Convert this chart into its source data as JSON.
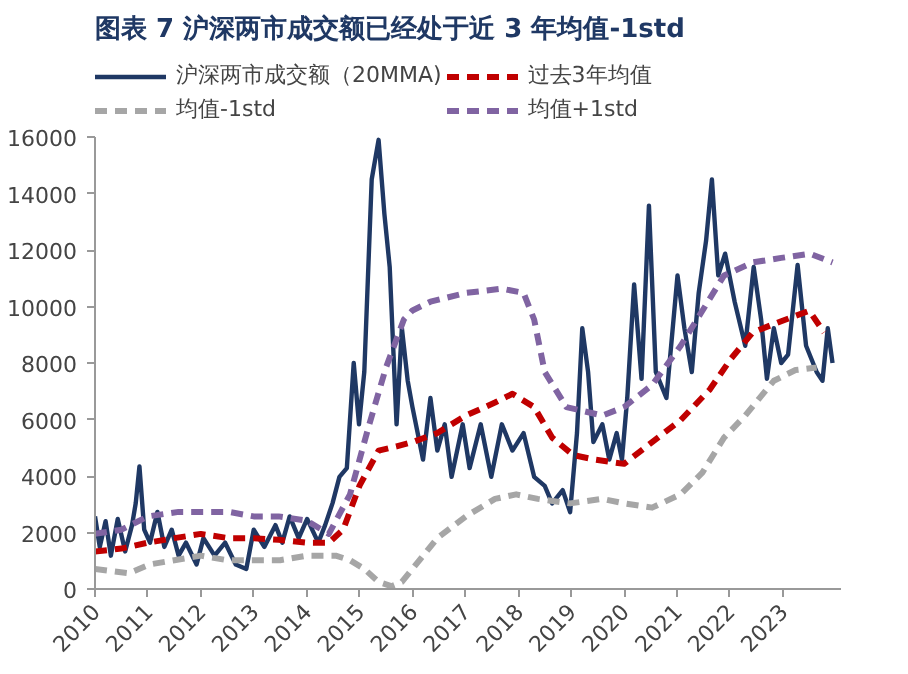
{
  "chart_data": {
    "type": "line",
    "title": "图表 7   沪深两市成交额已经处于近 3 年均值-1std",
    "xlim": [
      2010,
      2024.1
    ],
    "xticks": [
      2010,
      2011,
      2012,
      2013,
      2014,
      2015,
      2016,
      2017,
      2018,
      2019,
      2020,
      2021,
      2022,
      2023
    ],
    "ylim": [
      0,
      16000
    ],
    "yticks": [
      0,
      2000,
      4000,
      6000,
      8000,
      10000,
      12000,
      14000,
      16000
    ],
    "grid": false,
    "legend": "top",
    "series": [
      {
        "name": "沪深两市成交额（20MMA)",
        "color": "#1f3864",
        "line_style": "solid",
        "x": [
          2010.0,
          2010.09,
          2010.2,
          2010.3,
          2010.43,
          2010.57,
          2010.7,
          2010.77,
          2010.84,
          2010.93,
          2011.04,
          2011.18,
          2011.31,
          2011.45,
          2011.58,
          2011.72,
          2011.92,
          2012.05,
          2012.26,
          2012.46,
          2012.66,
          2012.86,
          2013.0,
          2013.2,
          2013.41,
          2013.54,
          2013.68,
          2013.85,
          2014.01,
          2014.22,
          2014.35,
          2014.49,
          2014.62,
          2014.76,
          2014.89,
          2014.99,
          2015.09,
          2015.23,
          2015.36,
          2015.47,
          2015.57,
          2015.7,
          2015.8,
          2015.91,
          2016.0,
          2016.2,
          2016.34,
          2016.47,
          2016.61,
          2016.74,
          2016.95,
          2017.08,
          2017.29,
          2017.49,
          2017.69,
          2017.89,
          2018.1,
          2018.3,
          2018.5,
          2018.64,
          2018.84,
          2018.98,
          2019.11,
          2019.21,
          2019.32,
          2019.42,
          2019.59,
          2019.72,
          2019.86,
          2019.96,
          2020.06,
          2020.19,
          2020.33,
          2020.47,
          2020.6,
          2020.8,
          2021.01,
          2021.14,
          2021.28,
          2021.41,
          2021.55,
          2021.66,
          2021.78,
          2021.91,
          2022.09,
          2022.29,
          2022.45,
          2022.59,
          2022.7,
          2022.83,
          2022.97,
          2023.1,
          2023.28,
          2023.44,
          2023.64,
          2023.75,
          2023.85,
          2023.94
        ],
        "values": [
          2570,
          1490,
          2400,
          1180,
          2480,
          1330,
          2260,
          3040,
          4340,
          2100,
          1640,
          2730,
          1490,
          2100,
          1180,
          1640,
          870,
          1800,
          1180,
          1640,
          870,
          710,
          2100,
          1490,
          2260,
          1640,
          2570,
          1800,
          2480,
          1640,
          2260,
          3040,
          3970,
          4280,
          8000,
          5830,
          7690,
          14500,
          15900,
          13270,
          11400,
          5830,
          9240,
          7380,
          6440,
          4580,
          6760,
          4900,
          5830,
          3970,
          5830,
          4280,
          5830,
          3970,
          5830,
          4900,
          5520,
          3970,
          3650,
          3030,
          3500,
          2720,
          5520,
          9230,
          7680,
          5200,
          5830,
          4580,
          5520,
          4580,
          6760,
          10780,
          7440,
          13570,
          7680,
          6760,
          11100,
          9230,
          7680,
          10480,
          12330,
          14500,
          11100,
          11870,
          10170,
          8610,
          11400,
          9540,
          7440,
          9230,
          8000,
          8300,
          11470,
          8610,
          7680,
          7370,
          9230,
          8000
        ]
      },
      {
        "name": "过去3年均值",
        "color": "#c00000",
        "line_style": "dashed",
        "x": [
          2010.0,
          2010.5,
          2011.0,
          2011.5,
          2012.0,
          2012.53,
          2013.0,
          2013.47,
          2014.0,
          2014.42,
          2014.69,
          2015.0,
          2015.36,
          2015.7,
          2016.0,
          2016.47,
          2017.01,
          2017.56,
          2017.89,
          2018.3,
          2018.64,
          2019.04,
          2019.45,
          2020.0,
          2020.53,
          2021.07,
          2021.62,
          2022.02,
          2022.43,
          2022.97,
          2023.5,
          2023.78
        ],
        "values": [
          1330,
          1430,
          1640,
          1800,
          1950,
          1800,
          1800,
          1740,
          1640,
          1640,
          2100,
          3660,
          4900,
          5050,
          5200,
          5520,
          6140,
          6600,
          6910,
          6440,
          5360,
          4740,
          4580,
          4430,
          5200,
          5980,
          7060,
          8150,
          9080,
          9480,
          9850,
          9080
        ]
      },
      {
        "name": "均值-1std",
        "color": "#a6a6a6",
        "line_style": "dashed",
        "x": [
          2010.0,
          2010.64,
          2011.04,
          2011.5,
          2012.0,
          2012.5,
          2013.0,
          2013.5,
          2014.0,
          2014.55,
          2014.82,
          2015.09,
          2015.36,
          2015.6,
          2015.8,
          2016.0,
          2016.47,
          2017.01,
          2017.56,
          2017.96,
          2018.37,
          2018.98,
          2019.59,
          2020.0,
          2020.53,
          2021.07,
          2021.48,
          2021.89,
          2022.29,
          2022.56,
          2022.83,
          2023.24,
          2023.64
        ],
        "values": [
          710,
          560,
          870,
          1020,
          1180,
          1020,
          1020,
          1020,
          1180,
          1180,
          1020,
          710,
          250,
          100,
          250,
          710,
          1800,
          2570,
          3190,
          3350,
          3190,
          3030,
          3190,
          3030,
          2880,
          3350,
          4120,
          5360,
          6140,
          6760,
          7370,
          7750,
          7840
        ]
      },
      {
        "name": "均值+1std",
        "color": "#8064a2",
        "line_style": "dashed",
        "x": [
          2010.0,
          2010.5,
          2011.0,
          2011.58,
          2012.0,
          2012.53,
          2013.0,
          2013.47,
          2014.0,
          2014.42,
          2014.82,
          2015.16,
          2015.5,
          2015.84,
          2016.0,
          2016.34,
          2017.01,
          2017.69,
          2018.1,
          2018.3,
          2018.5,
          2018.91,
          2019.59,
          2020.0,
          2020.53,
          2021.07,
          2021.48,
          2021.89,
          2022.43,
          2022.97,
          2023.51,
          2023.94
        ],
        "values": [
          1950,
          2100,
          2570,
          2730,
          2730,
          2730,
          2570,
          2570,
          2420,
          1950,
          3350,
          5670,
          7840,
          9550,
          9860,
          10170,
          10480,
          10630,
          10480,
          9540,
          7680,
          6440,
          6140,
          6440,
          7220,
          8610,
          9850,
          11100,
          11560,
          11720,
          11870,
          11560
        ]
      }
    ]
  }
}
